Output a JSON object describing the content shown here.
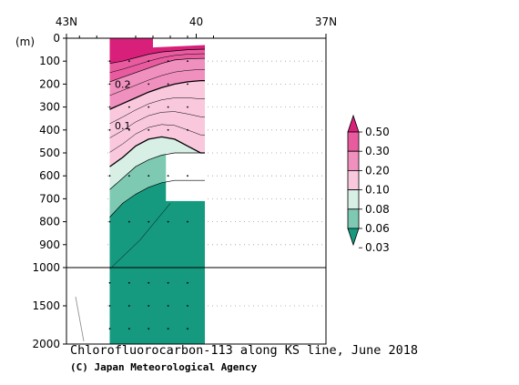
{
  "chart_data": {
    "type": "heatmap",
    "title": "Chlorofluorocarbon-113 along KS line, June 2018",
    "credit": "(C) Japan Meteorological Agency",
    "ylabel": "(m)",
    "x_axis": {
      "position": "top",
      "ticks": [
        {
          "value": 43,
          "label": "43N"
        },
        {
          "value": 40,
          "label": "40"
        },
        {
          "value": 37,
          "label": "37N"
        }
      ],
      "range": [
        43,
        37
      ]
    },
    "y_axis": {
      "inverted": true,
      "upper_ticks": [
        0,
        100,
        200,
        300,
        400,
        500,
        600,
        700,
        800,
        900,
        1000
      ],
      "lower_ticks": [
        1500,
        2000
      ],
      "break_at": 1000,
      "range": [
        0,
        2000
      ]
    },
    "grid": "dotted",
    "legend": {
      "placement": "right",
      "levels": [
        "0.50",
        "0.30",
        "0.20",
        "0.10",
        "0.08",
        "0.06",
        "0.03"
      ],
      "colors": [
        "#d8207a",
        "#e85b9f",
        "#f090be",
        "#f9c8dc",
        "#d7efe5",
        "#7ec9b2",
        "#159a80"
      ]
    },
    "contour_labels": [
      {
        "text": "0.2",
        "lat": 41.7,
        "depth": 200
      },
      {
        "text": "0.1",
        "lat": 41.7,
        "depth": 380
      }
    ],
    "band_boundaries": {
      "lats": [
        42.0,
        41.7,
        41.4,
        41.1,
        40.8,
        40.5,
        40.2,
        39.9,
        39.8
      ],
      "b050": [
        110,
        100,
        85,
        70,
        60,
        55,
        50,
        48,
        48
      ],
      "b030": [
        190,
        170,
        150,
        130,
        110,
        95,
        90,
        88,
        88
      ],
      "b020": [
        310,
        285,
        260,
        235,
        215,
        200,
        190,
        185,
        185
      ],
      "b010": [
        560,
        520,
        470,
        440,
        430,
        440,
        470,
        500,
        500
      ],
      "b008": [
        660,
        610,
        560,
        530,
        510,
        500,
        500,
        500,
        500
      ],
      "b006": [
        780,
        720,
        680,
        650,
        630,
        620,
        620,
        620,
        620
      ]
    },
    "section_bounds": {
      "lat_north": 42.0,
      "lat_south": 39.8,
      "max_depth": 2000
    },
    "gaps": [
      {
        "lat_from": 40.7,
        "lat_to": 39.8,
        "depth_from": 500,
        "depth_to": 710
      },
      {
        "lat_from": 42.1,
        "lat_to": 43.2,
        "depth_from": 0,
        "depth_to": 2000
      }
    ]
  }
}
